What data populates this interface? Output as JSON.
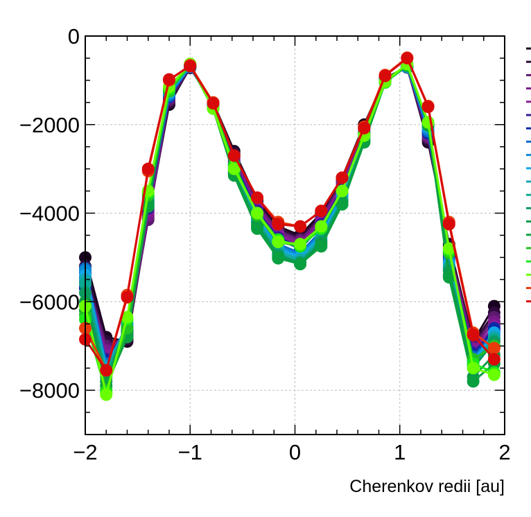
{
  "chart_data": {
    "type": "line",
    "title": "",
    "xlabel": "Cherenkov redii [au]",
    "ylabel": "",
    "xlim": [
      -2,
      2
    ],
    "ylim": [
      -9000,
      0
    ],
    "x_ticks": [
      -2,
      -1,
      0,
      1,
      2
    ],
    "x_tick_labels": [
      "−2",
      "−1",
      "0",
      "1",
      "2"
    ],
    "y_ticks": [
      0,
      -2000,
      -4000,
      -6000,
      -8000
    ],
    "y_tick_labels": [
      "0",
      "−2000",
      "−4000",
      "−6000",
      "−8000"
    ],
    "grid": true,
    "legend": "right, unlabeled (color markers only)",
    "x": [
      -2.0,
      -1.8,
      -1.6,
      -1.4,
      -1.2,
      -1.0,
      -0.78,
      -0.58,
      -0.36,
      -0.16,
      0.05,
      0.25,
      0.45,
      0.66,
      0.86,
      1.07,
      1.27,
      1.47,
      1.7,
      1.9
    ],
    "series": [
      {
        "color": "#1a0020",
        "values": [
          -5000,
          -6800,
          -6900,
          -4100,
          -1550,
          -700,
          -1500,
          -2600,
          -3700,
          -4300,
          -4500,
          -4000,
          -3200,
          -2000,
          -950,
          -700,
          -2400,
          -4700,
          -6900,
          -6100
        ]
      },
      {
        "color": "#2e0a3a",
        "values": [
          -5200,
          -6900,
          -6850,
          -4000,
          -1500,
          -720,
          -1520,
          -2650,
          -3750,
          -4350,
          -4550,
          -4050,
          -3250,
          -2050,
          -960,
          -710,
          -2350,
          -4750,
          -6950,
          -6250
        ]
      },
      {
        "color": "#5c1a6e",
        "values": [
          -5350,
          -7000,
          -6800,
          -4150,
          -1450,
          -700,
          -1530,
          -2700,
          -3800,
          -4400,
          -4600,
          -4100,
          -3300,
          -2100,
          -970,
          -700,
          -2300,
          -4800,
          -7000,
          -6350
        ]
      },
      {
        "color": "#7a1a8a",
        "values": [
          -5450,
          -7100,
          -6750,
          -4050,
          -1400,
          -690,
          -1540,
          -2750,
          -3850,
          -4450,
          -4650,
          -4150,
          -3350,
          -2150,
          -980,
          -690,
          -2250,
          -4850,
          -7050,
          -6450
        ]
      },
      {
        "color": "#8a1a9a",
        "values": [
          -5550,
          -7200,
          -6700,
          -3950,
          -1350,
          -680,
          -1550,
          -2800,
          -3900,
          -4500,
          -4700,
          -4200,
          -3400,
          -2200,
          -990,
          -680,
          -2200,
          -4900,
          -7100,
          -6550
        ]
      },
      {
        "color": "#3a1a9a",
        "values": [
          -5650,
          -7300,
          -6650,
          -3900,
          -1300,
          -670,
          -1560,
          -2850,
          -3950,
          -4550,
          -4750,
          -4250,
          -3450,
          -2250,
          -1000,
          -670,
          -2150,
          -4950,
          -7150,
          -6650
        ]
      },
      {
        "color": "#0a2aa8",
        "values": [
          -5700,
          -7350,
          -6650,
          -3850,
          -1380,
          -690,
          -1570,
          -2900,
          -4000,
          -4600,
          -4800,
          -4300,
          -3500,
          -2200,
          -980,
          -680,
          -2200,
          -5000,
          -7200,
          -6600
        ]
      },
      {
        "color": "#0a6ac8",
        "values": [
          -5250,
          -7400,
          -6600,
          -3800,
          -1350,
          -700,
          -1560,
          -2950,
          -4050,
          -4700,
          -4900,
          -4400,
          -3550,
          -2250,
          -990,
          -690,
          -2150,
          -5050,
          -7250,
          -6700
        ]
      },
      {
        "color": "#0a8ad8",
        "values": [
          -5300,
          -7450,
          -6550,
          -3750,
          -1300,
          -690,
          -1580,
          -3000,
          -4100,
          -4750,
          -4950,
          -4450,
          -3600,
          -2300,
          -1000,
          -700,
          -2100,
          -5100,
          -7300,
          -6750
        ]
      },
      {
        "color": "#12a8e8",
        "values": [
          -5400,
          -7500,
          -6500,
          -3700,
          -1280,
          -680,
          -1590,
          -3000,
          -4100,
          -4800,
          -5000,
          -4500,
          -3650,
          -2300,
          -1000,
          -690,
          -2050,
          -5150,
          -7350,
          -6700
        ]
      },
      {
        "color": "#10a8b0",
        "values": [
          -5500,
          -7550,
          -6500,
          -3650,
          -1250,
          -670,
          -1600,
          -3050,
          -4150,
          -4850,
          -5050,
          -4550,
          -3700,
          -2350,
          -1010,
          -680,
          -2000,
          -5200,
          -7400,
          -6800
        ]
      },
      {
        "color": "#0aa890",
        "values": [
          -5600,
          -7600,
          -6550,
          -3700,
          -1220,
          -660,
          -1610,
          -3050,
          -4200,
          -4900,
          -5100,
          -4600,
          -3700,
          -2350,
          -1020,
          -670,
          -2000,
          -5250,
          -7450,
          -6850
        ]
      },
      {
        "color": "#0a9a60",
        "values": [
          -5800,
          -7700,
          -6600,
          -3750,
          -1200,
          -650,
          -1620,
          -3100,
          -4250,
          -4950,
          -5120,
          -4650,
          -3750,
          -2380,
          -1030,
          -660,
          -1980,
          -5300,
          -7500,
          -6900
        ]
      },
      {
        "color": "#0a9a48",
        "values": [
          -6000,
          -7800,
          -6700,
          -3800,
          -1200,
          -650,
          -1630,
          -3100,
          -4300,
          -5000,
          -5150,
          -4700,
          -3800,
          -2400,
          -1040,
          -660,
          -2000,
          -5400,
          -7700,
          -7200
        ]
      },
      {
        "color": "#0aa040",
        "values": [
          -6200,
          -7900,
          -6800,
          -3850,
          -1220,
          -660,
          -1640,
          -3150,
          -4350,
          -5020,
          -5150,
          -4750,
          -3800,
          -2400,
          -1050,
          -670,
          -2020,
          -5450,
          -7800,
          -7400
        ]
      },
      {
        "color": "#22c022",
        "values": [
          -6300,
          -8000,
          -6600,
          -3600,
          -1250,
          -650,
          -1600,
          -2900,
          -4050,
          -4650,
          -4750,
          -4350,
          -3500,
          -2200,
          -1000,
          -650,
          -1950,
          -4900,
          -7300,
          -7000
        ]
      },
      {
        "color": "#18e818",
        "values": [
          -6400,
          -8050,
          -6400,
          -3550,
          -1200,
          -640,
          -1620,
          -2950,
          -4000,
          -4600,
          -4750,
          -4350,
          -3500,
          -2250,
          -1050,
          -640,
          -1950,
          -4850,
          -7400,
          -7600
        ]
      },
      {
        "color": "#6aff00",
        "values": [
          -6100,
          -8100,
          -6350,
          -3500,
          -1150,
          -630,
          -1640,
          -3000,
          -4000,
          -4650,
          -4700,
          -4300,
          -3500,
          -2250,
          -1030,
          -630,
          -1950,
          -4800,
          -7500,
          -7650
        ]
      },
      {
        "color": "#e83a0a",
        "values": [
          -6600,
          -7550,
          -5850,
          -3050,
          -1000,
          -660,
          -1500,
          -2700,
          -3650,
          -4200,
          -4300,
          -3950,
          -3200,
          -2050,
          -880,
          -490,
          -1580,
          -4200,
          -6700,
          -7050
        ]
      },
      {
        "color": "#d80a0a",
        "values": [
          -6850,
          -7550,
          -5900,
          -3000,
          -980,
          -680,
          -1520,
          -2700,
          -3650,
          -4250,
          -4300,
          -3950,
          -3200,
          -2080,
          -900,
          -500,
          -1600,
          -4250,
          -6750,
          -7300
        ]
      }
    ]
  }
}
